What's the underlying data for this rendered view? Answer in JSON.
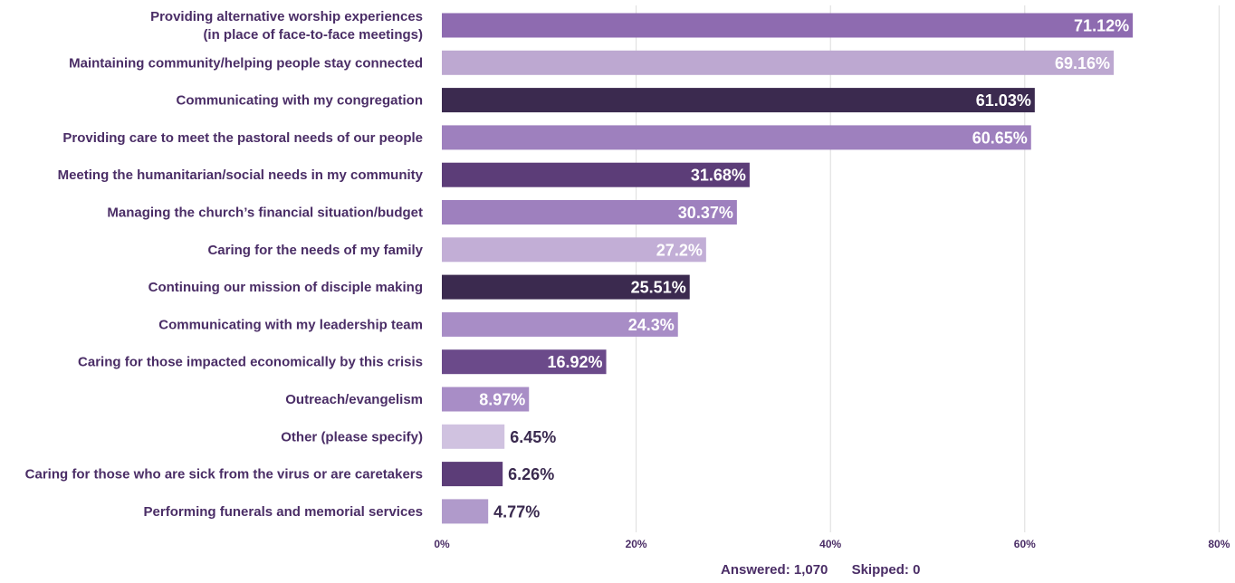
{
  "chart_data": {
    "type": "bar",
    "orientation": "horizontal",
    "categories": [
      [
        "Providing alternative worship experiences",
        "(in place of face-to-face meetings)"
      ],
      [
        "Maintaining community/helping people stay connected"
      ],
      [
        "Communicating with my congregation"
      ],
      [
        "Providing care to meet the pastoral needs of our people"
      ],
      [
        "Meeting the humanitarian/social needs in my community"
      ],
      [
        "Managing the church’s financial situation/budget"
      ],
      [
        "Caring for the needs of my family"
      ],
      [
        "Continuing our mission of disciple making"
      ],
      [
        "Communicating with my leadership team"
      ],
      [
        "Caring for those impacted economically by this crisis"
      ],
      [
        "Outreach/evangelism"
      ],
      [
        "Other (please specify)"
      ],
      [
        "Caring for those who are sick from the virus or are caretakers"
      ],
      [
        "Performing funerals and memorial services"
      ]
    ],
    "values": [
      71.12,
      69.16,
      61.03,
      60.65,
      31.68,
      30.37,
      27.2,
      25.51,
      24.3,
      16.92,
      8.97,
      6.45,
      6.26,
      4.77
    ],
    "value_labels": [
      "71.12%",
      "69.16%",
      "61.03%",
      "60.65%",
      "31.68%",
      "30.37%",
      "27.2%",
      "25.51%",
      "24.3%",
      "16.92%",
      "8.97%",
      "6.45%",
      "6.26%",
      "4.77%"
    ],
    "colors": [
      "#8e6bb0",
      "#bda8d1",
      "#3b2a4f",
      "#9e80be",
      "#5c3d78",
      "#9e80be",
      "#c2aed6",
      "#3b2a4f",
      "#a88dc6",
      "#6b4a8a",
      "#a88dc6",
      "#d0c2e0",
      "#5c3d78",
      "#b09acb"
    ],
    "xlim": [
      0,
      80
    ],
    "xticks": [
      0,
      20,
      40,
      60,
      80
    ],
    "xtick_labels": [
      "0%",
      "20%",
      "40%",
      "60%",
      "80%"
    ],
    "grid": true,
    "legend": "none",
    "title": "",
    "xlabel": "",
    "ylabel": ""
  },
  "footer": {
    "answered": "Answered: 1,070",
    "skipped": "Skipped: 0"
  }
}
